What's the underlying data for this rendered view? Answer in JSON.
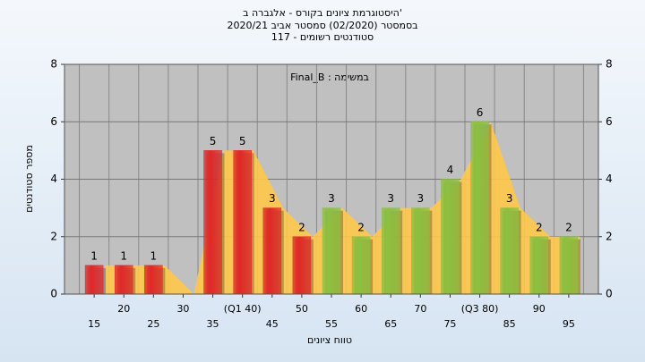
{
  "chart_data": {
    "type": "bar",
    "title_lines": [
      "היסטוגרמת ציונים בקורס - אלגברה ב'",
      "בסמסטר (02/2020) סמסטר אביב 2020/21",
      "סטודנטים רשומים - 117"
    ],
    "annotation": "Final_B : במשימה",
    "y_label": "מספר סטודנטים",
    "x_label": "טווח ציונים",
    "categories": [
      "15",
      "20",
      "25",
      "30",
      "35",
      "(Q1 40)",
      "45",
      "50",
      "55",
      "60",
      "65",
      "70",
      "75",
      "(Q3 80)",
      "85",
      "90",
      "95"
    ],
    "values": [
      1,
      1,
      1,
      0,
      5,
      5,
      3,
      2,
      3,
      2,
      3,
      3,
      4,
      6,
      3,
      2,
      2
    ],
    "colors": [
      "#e02828",
      "#e02828",
      "#e02828",
      "#e02828",
      "#e02828",
      "#e02828",
      "#e02828",
      "#e02828",
      "#8cc040",
      "#8cc040",
      "#8cc040",
      "#8cc040",
      "#8cc040",
      "#8cc040",
      "#8cc040",
      "#8cc040",
      "#8cc040"
    ],
    "area_color": "#ffc84a",
    "ylim": [
      0,
      8
    ],
    "yticks": [
      0,
      2,
      4,
      6,
      8
    ],
    "grid": true
  }
}
